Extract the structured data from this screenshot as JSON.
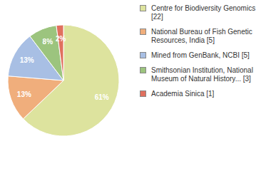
{
  "chart_data": {
    "type": "pie",
    "categories": [
      "Centre for Biodiversity Genomics [22]",
      "National Bureau of Fish Genetic Resources, India [5]",
      "Mined from GenBank, NCBI [5]",
      "Smithsonian Institution, National Museum of Natural History... [3]",
      "Academia Sinica [1]"
    ],
    "values": [
      61,
      13,
      13,
      8,
      2
    ],
    "value_labels": [
      "61%",
      "13%",
      "13%",
      "8%",
      "2%"
    ],
    "data_labels": true,
    "legend": "right",
    "colors": [
      "#dde39e",
      "#f0ae7c",
      "#a8bfe4",
      "#9cc47e",
      "#e0705e"
    ]
  }
}
